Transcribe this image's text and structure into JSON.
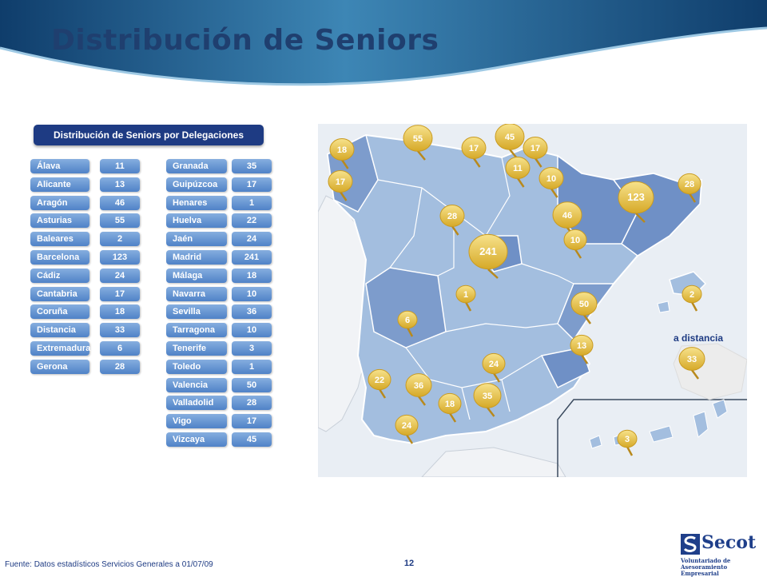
{
  "title": "Distribución de Seniors",
  "panel_title": "Distribución de Seniors por Delegaciones",
  "delegations": [
    {
      "name": "Álava",
      "value": "11"
    },
    {
      "name": "Alicante",
      "value": "13"
    },
    {
      "name": "Aragón",
      "value": "46"
    },
    {
      "name": "Asturias",
      "value": "55"
    },
    {
      "name": "Baleares",
      "value": "2"
    },
    {
      "name": "Barcelona",
      "value": "123"
    },
    {
      "name": "Cádiz",
      "value": "24"
    },
    {
      "name": "Cantabria",
      "value": "17"
    },
    {
      "name": "Coruña",
      "value": "18"
    },
    {
      "name": "Distancia",
      "value": "33"
    },
    {
      "name": "Extremadura",
      "value": "6"
    },
    {
      "name": "Gerona",
      "value": "28"
    },
    {
      "name": "Granada",
      "value": "35"
    },
    {
      "name": "Guipúzcoa",
      "value": "17"
    },
    {
      "name": "Henares",
      "value": "1"
    },
    {
      "name": "Huelva",
      "value": "22"
    },
    {
      "name": "Jaén",
      "value": "24"
    },
    {
      "name": "Madrid",
      "value": "241"
    },
    {
      "name": "Málaga",
      "value": "18"
    },
    {
      "name": "Navarra",
      "value": "10"
    },
    {
      "name": "Sevilla",
      "value": "36"
    },
    {
      "name": "Tarragona",
      "value": "10"
    },
    {
      "name": "Tenerife",
      "value": "3"
    },
    {
      "name": "Toledo",
      "value": "1"
    },
    {
      "name": "Valencia",
      "value": "50"
    },
    {
      "name": "Valladolid",
      "value": "28"
    },
    {
      "name": "Vigo",
      "value": "17"
    },
    {
      "name": "Vizcaya",
      "value": "45"
    }
  ],
  "map": {
    "distance_label": "a distancia",
    "pins": [
      {
        "label": "18"
      },
      {
        "label": "55"
      },
      {
        "label": "17"
      },
      {
        "label": "45"
      },
      {
        "label": "17"
      },
      {
        "label": "17"
      },
      {
        "label": "11"
      },
      {
        "label": "10"
      },
      {
        "label": "123"
      },
      {
        "label": "28"
      },
      {
        "label": "28"
      },
      {
        "label": "46"
      },
      {
        "label": "10"
      },
      {
        "label": "241"
      },
      {
        "label": "2"
      },
      {
        "label": "1"
      },
      {
        "label": "50"
      },
      {
        "label": "6"
      },
      {
        "label": "13"
      },
      {
        "label": "33"
      },
      {
        "label": "24"
      },
      {
        "label": "22"
      },
      {
        "label": "36"
      },
      {
        "label": "18"
      },
      {
        "label": "35"
      },
      {
        "label": "24"
      },
      {
        "label": "3"
      }
    ]
  },
  "footer": {
    "source": "Fuente: Datos estadísticos Servicios Generales a 01/07/09",
    "page_number": "12"
  },
  "logo": {
    "name": "Secot",
    "subtitle_line1": "Voluntariado de",
    "subtitle_line2": "Asesoramiento Empresarial"
  },
  "colors": {
    "title": "#1f3f6f",
    "panel": "#1e3b83",
    "pill": "#5b8fcf",
    "pin": "#e9c64a"
  }
}
